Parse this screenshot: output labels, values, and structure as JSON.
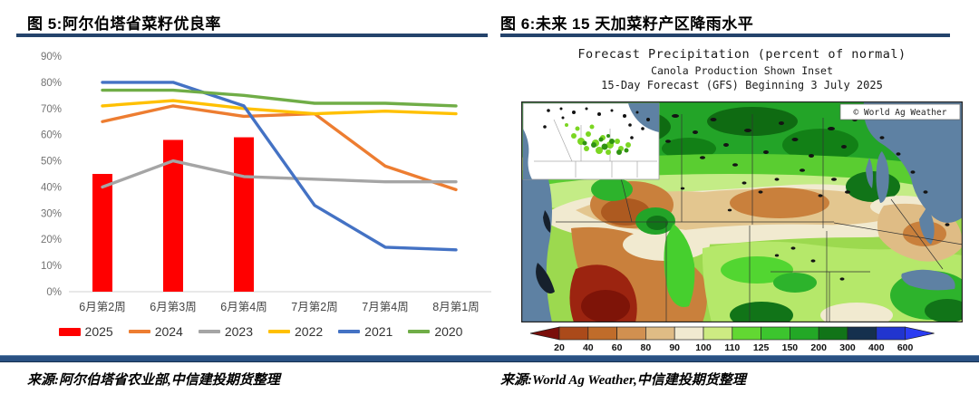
{
  "figure5": {
    "title": "图 5:阿尔伯塔省菜籽优良率",
    "source": "来源:阿尔伯塔省农业部,中信建投期货整理"
  },
  "figure6": {
    "title": "图 6:未来 15 天加菜籽产区降雨水平",
    "source": "来源:World Ag Weather,中信建投期货整理",
    "map": {
      "title": "Forecast Precipitation (percent of normal)",
      "subtitle1": "Canola Production Shown Inset",
      "subtitle2": "15-Day Forecast (GFS) Beginning 3 July 2025",
      "watermark": "© World Ag Weather"
    }
  },
  "chart_data": [
    {
      "type": "combo",
      "title": "阿尔伯塔省菜籽优良率",
      "categories": [
        "6月第2周",
        "6月第3周",
        "6月第4周",
        "7月第2周",
        "7月第4周",
        "8月第1周"
      ],
      "series": [
        {
          "name": "2025",
          "type": "bar",
          "color": "#FF0000",
          "values": [
            45,
            58,
            59,
            null,
            null,
            null
          ]
        },
        {
          "name": "2024",
          "type": "line",
          "color": "#ED7D31",
          "values": [
            65,
            71,
            67,
            68,
            48,
            39
          ]
        },
        {
          "name": "2023",
          "type": "line",
          "color": "#A5A5A5",
          "values": [
            40,
            50,
            44,
            43,
            42,
            42
          ]
        },
        {
          "name": "2022",
          "type": "line",
          "color": "#FFC000",
          "values": [
            71,
            73,
            70,
            68,
            69,
            68
          ]
        },
        {
          "name": "2021",
          "type": "line",
          "color": "#4472C4",
          "values": [
            80,
            80,
            71,
            33,
            17,
            16
          ]
        },
        {
          "name": "2020",
          "type": "line",
          "color": "#70AD47",
          "values": [
            77,
            77,
            75,
            72,
            72,
            71
          ]
        }
      ],
      "ylim": [
        0,
        90
      ],
      "ytick_step": 10,
      "ytick_suffix": "%",
      "grid": false,
      "legend_position": "bottom"
    },
    {
      "type": "heatmap",
      "title": "Forecast Precipitation (percent of normal)",
      "subtitle": [
        "Canola Production Shown Inset",
        "15-Day Forecast (GFS) Beginning 3 July 2025"
      ],
      "unit": "percent of normal",
      "colorbar": {
        "tick_labels": [
          "20",
          "40",
          "60",
          "80",
          "90",
          "100",
          "110",
          "125",
          "150",
          "200",
          "300",
          "400",
          "600"
        ],
        "segment_colors": [
          "#AB4A1A",
          "#C06C2A",
          "#D19050",
          "#DFBC85",
          "#F1EAD0",
          "#CDEB82",
          "#62D832",
          "#3CC52E",
          "#23A826",
          "#117418",
          "#15304E",
          "#2135CF"
        ],
        "left_arrow_color": "#7A0E0A",
        "right_arrow_color": "#2B3CF2"
      }
    }
  ],
  "colors": {
    "title_rule": "#24436B",
    "bottom_bar": "#2A5183",
    "axis_text": "#737373",
    "ocean": "#5E81A3"
  }
}
